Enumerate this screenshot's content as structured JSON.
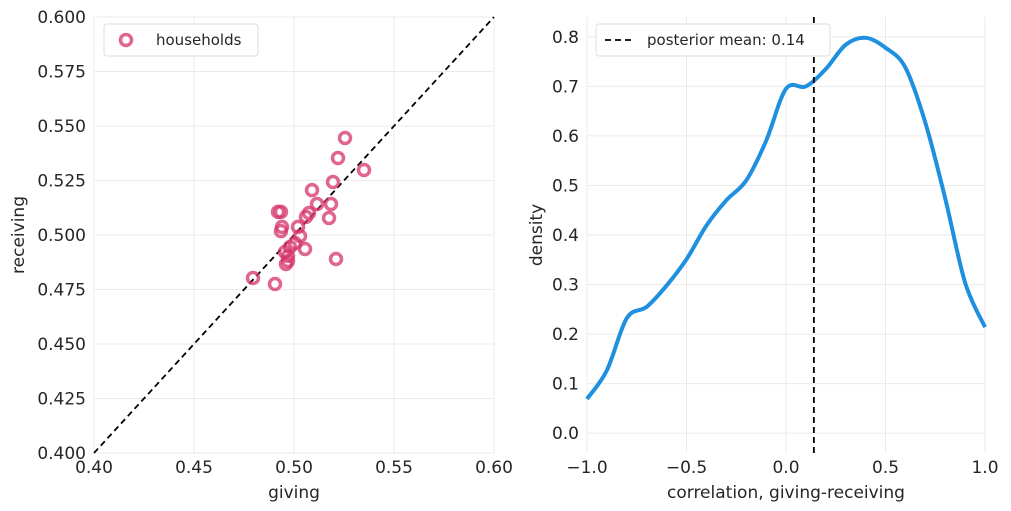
{
  "chart_data": [
    {
      "type": "scatter",
      "xlabel": "giving",
      "ylabel": "receiving",
      "series": [
        {
          "name": "households",
          "color": "#d6336c",
          "x": [
            0.5255,
            0.522,
            0.535,
            0.5195,
            0.509,
            0.5115,
            0.5185,
            0.492,
            0.4935,
            0.5075,
            0.506,
            0.5175,
            0.502,
            0.494,
            0.4935,
            0.503,
            0.5005,
            0.498,
            0.4955,
            0.5055,
            0.497,
            0.497,
            0.496,
            0.521,
            0.4795,
            0.4905
          ],
          "values": [
            0.5445,
            0.5353,
            0.5298,
            0.5243,
            0.5206,
            0.5142,
            0.5142,
            0.5106,
            0.5106,
            0.5101,
            0.5083,
            0.5078,
            0.5037,
            0.5037,
            0.5018,
            0.4995,
            0.4963,
            0.4945,
            0.4922,
            0.4936,
            0.4904,
            0.4881,
            0.4867,
            0.489,
            0.4803,
            0.4775
          ]
        }
      ],
      "xlim": [
        0.4,
        0.6
      ],
      "ylim": [
        0.4,
        0.6
      ],
      "xticks": [
        {
          "value": 0.4,
          "label": "0.40"
        },
        0.45,
        {
          "value": 0.5,
          "label": "0.50"
        },
        0.55,
        {
          "value": 0.6,
          "label": "0.60"
        }
      ],
      "yticks": [
        {
          "value": 0.4,
          "label": "0.400"
        },
        0.425,
        {
          "value": 0.45,
          "label": "0.450"
        },
        0.475,
        {
          "value": 0.5,
          "label": "0.500"
        },
        0.525,
        {
          "value": 0.55,
          "label": "0.550"
        },
        0.575,
        {
          "value": 0.6,
          "label": "0.600"
        }
      ],
      "grid": true,
      "identity_line": true,
      "legend": "upper left"
    },
    {
      "type": "line",
      "xlabel": "correlation, giving-receiving",
      "ylabel": "density",
      "x": [
        -1.0,
        -0.9,
        -0.8,
        -0.7,
        -0.6,
        -0.5,
        -0.4,
        -0.3,
        -0.2,
        -0.1,
        0.0,
        0.1,
        0.2,
        0.3,
        0.4,
        0.5,
        0.6,
        0.7,
        0.8,
        0.9,
        1.0
      ],
      "series": [
        {
          "name": null,
          "color": "#1f8fdf",
          "values": [
            0.069,
            0.127,
            0.232,
            0.255,
            0.298,
            0.351,
            0.419,
            0.47,
            0.51,
            0.59,
            0.695,
            0.7,
            0.735,
            0.784,
            0.798,
            0.778,
            0.738,
            0.627,
            0.474,
            0.304,
            0.214
          ]
        }
      ],
      "xlim": [
        -1.0,
        1.0
      ],
      "ylim": [
        -0.04,
        0.84
      ],
      "xticks": [
        {
          "value": -1.0,
          "label": "−1.0"
        },
        {
          "value": -0.5,
          "label": "−0.5"
        },
        {
          "value": 0.0,
          "label": "0.0"
        },
        0.5,
        {
          "value": 1.0,
          "label": "1.0"
        }
      ],
      "yticks": [
        {
          "value": 0.0,
          "label": "0.0"
        },
        0.1,
        0.2,
        0.3,
        0.4,
        0.5,
        0.6,
        0.7,
        0.8
      ],
      "grid": true,
      "vline": {
        "value": 0.14,
        "label": "posterior mean: 0.14"
      },
      "legend": "upper left"
    }
  ]
}
